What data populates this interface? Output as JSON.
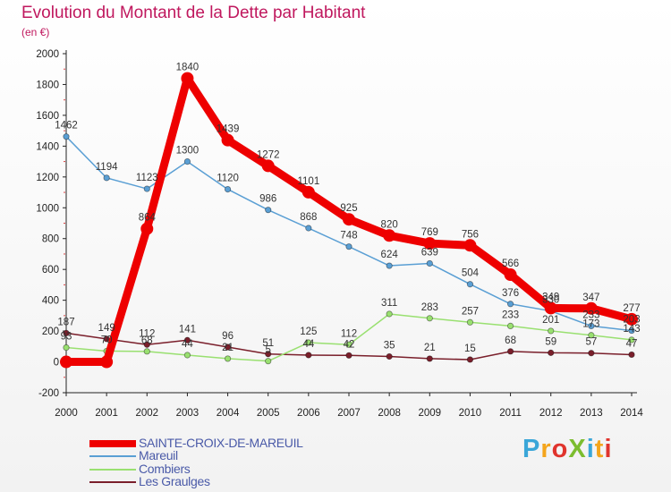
{
  "header": {
    "title": "Evolution du Montant de la Dette par Habitant",
    "subtitle": "(en €)"
  },
  "brand": {
    "text": "ProXiti",
    "colors": [
      "#3aa6d8",
      "#f4a51c",
      "#e0342d",
      "#7cbd2f"
    ]
  },
  "chart_data": {
    "type": "line",
    "title": "Evolution du Montant de la Dette par Habitant",
    "subtitle": "(en €)",
    "x": [
      "2000",
      "2001",
      "2002",
      "2003",
      "2004",
      "2005",
      "2006",
      "2007",
      "2008",
      "2009",
      "2010",
      "2011",
      "2012",
      "2013",
      "2014"
    ],
    "y_ticks": [
      "-200",
      "0",
      "200",
      "400",
      "600",
      "800",
      "1000",
      "1200",
      "1400",
      "1600",
      "1800",
      "2000"
    ],
    "ylim": [
      -200,
      2000
    ],
    "grid": false,
    "legend_position": "bottom-left",
    "series": [
      {
        "name": "SAINTE-CROIX-DE-MAREUIL",
        "color": "#ee0000",
        "values": [
          0,
          0,
          864,
          1840,
          1439,
          1272,
          1101,
          925,
          820,
          769,
          756,
          566,
          349,
          347,
          277
        ],
        "labels": [
          "",
          "",
          "864",
          "1840",
          "1439",
          "1272",
          "1101",
          "925",
          "820",
          "769",
          "756",
          "566",
          "349",
          "347",
          "277"
        ]
      },
      {
        "name": "Mareuil",
        "color": "#5a9fd4",
        "values": [
          1462,
          1194,
          1123,
          1300,
          1120,
          986,
          868,
          748,
          624,
          639,
          504,
          376,
          330,
          233,
          203
        ],
        "labels": [
          "1462",
          "1194",
          "1123",
          "1300",
          "1120",
          "986",
          "868",
          "748",
          "624",
          "639",
          "504",
          "376",
          "330",
          "233",
          "203"
        ]
      },
      {
        "name": "Combiers",
        "color": "#99e070",
        "values": [
          93,
          70,
          68,
          44,
          21,
          5,
          125,
          112,
          311,
          283,
          257,
          233,
          201,
          173,
          143
        ],
        "labels": [
          "93",
          "70",
          "68",
          "44",
          "21",
          "5",
          "125",
          "112",
          "311",
          "283",
          "257",
          "233",
          "201",
          "173",
          "143"
        ]
      },
      {
        "name": "Les Graulges",
        "color": "#7a1f2b",
        "values": [
          187,
          149,
          112,
          141,
          96,
          51,
          44,
          42,
          35,
          21,
          15,
          68,
          59,
          57,
          47
        ],
        "labels": [
          "187",
          "149",
          "112",
          "141",
          "96",
          "51",
          "44",
          "42",
          "35",
          "21",
          "15",
          "68",
          "59",
          "57",
          "47"
        ]
      }
    ]
  }
}
